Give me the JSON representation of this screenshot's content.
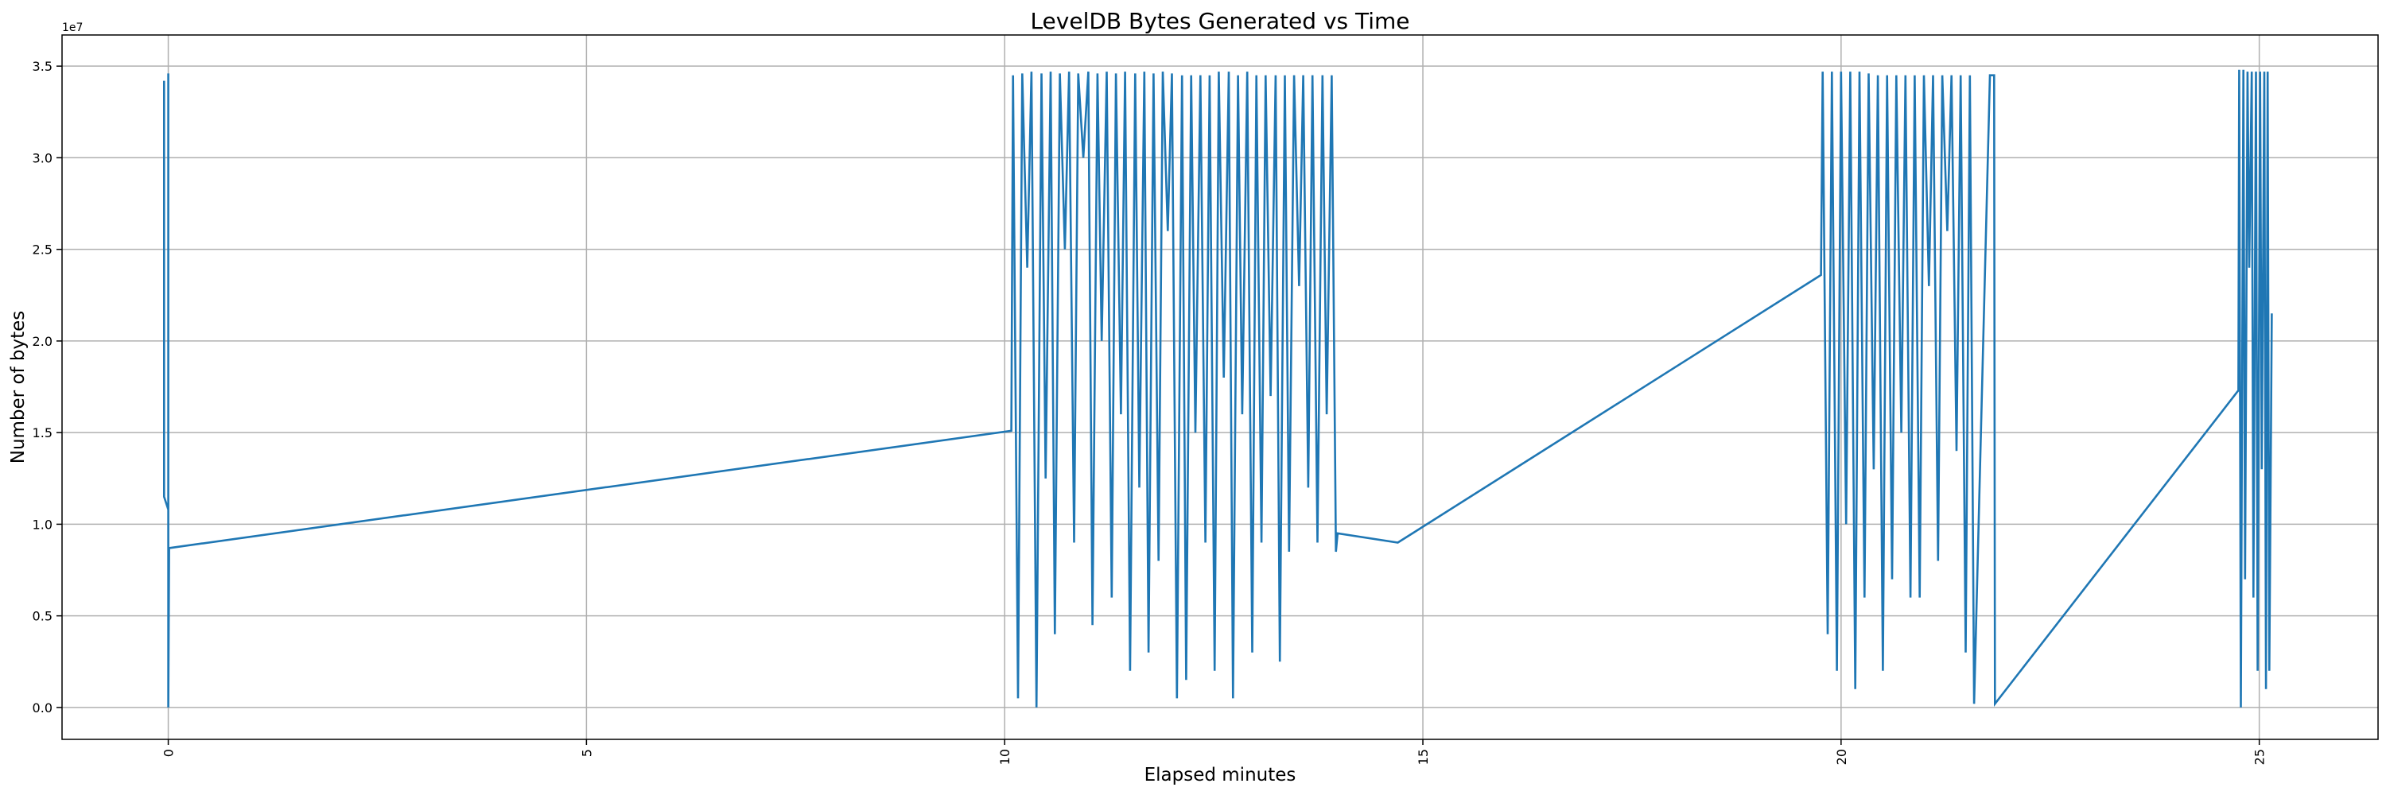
{
  "chart_data": {
    "type": "line",
    "title": "LevelDB Bytes Generated vs Time",
    "xlabel": "Elapsed minutes",
    "ylabel": "Number of bytes",
    "y_offset_label": "1e7",
    "xlim": [
      -1.27,
      26.42
    ],
    "ylim": [
      -0.174,
      3.67
    ],
    "y_units": "1e7 bytes",
    "grid": true,
    "x_ticks": [
      0,
      5,
      10,
      15,
      20,
      25
    ],
    "x_tick_labels": [
      "0",
      "5",
      "10",
      "15",
      "20",
      "25"
    ],
    "y_ticks": [
      0,
      0.5,
      1.0,
      1.5,
      2.0,
      2.5,
      3.0,
      3.5
    ],
    "y_tick_labels": [
      "0.0",
      "0.5",
      "1.0",
      "1.5",
      "2.0",
      "2.5",
      "3.0",
      "3.5"
    ],
    "series": [
      {
        "name": "bytes",
        "color": "#1f77b4",
        "points": [
          [
            -0.05,
            3.42
          ],
          [
            -0.05,
            1.15
          ],
          [
            0,
            1.08
          ],
          [
            0,
            3.46
          ],
          [
            0,
            0.0
          ],
          [
            0.01,
            0.87
          ],
          [
            10.08,
            1.51
          ],
          [
            10.1,
            3.45
          ],
          [
            10.16,
            0.05
          ],
          [
            10.21,
            3.46
          ],
          [
            10.27,
            2.4
          ],
          [
            10.32,
            3.47
          ],
          [
            10.38,
            0.0
          ],
          [
            10.44,
            3.46
          ],
          [
            10.49,
            1.25
          ],
          [
            10.55,
            3.47
          ],
          [
            10.6,
            0.4
          ],
          [
            10.66,
            3.46
          ],
          [
            10.72,
            2.5
          ],
          [
            10.77,
            3.47
          ],
          [
            10.83,
            0.9
          ],
          [
            10.88,
            3.46
          ],
          [
            10.94,
            3.0
          ],
          [
            11.0,
            3.47
          ],
          [
            11.05,
            0.45
          ],
          [
            11.11,
            3.46
          ],
          [
            11.16,
            2.0
          ],
          [
            11.22,
            3.47
          ],
          [
            11.28,
            0.6
          ],
          [
            11.33,
            3.46
          ],
          [
            11.39,
            1.6
          ],
          [
            11.44,
            3.47
          ],
          [
            11.5,
            0.2
          ],
          [
            11.56,
            3.46
          ],
          [
            11.61,
            1.2
          ],
          [
            11.67,
            3.47
          ],
          [
            11.72,
            0.3
          ],
          [
            11.78,
            3.46
          ],
          [
            11.84,
            0.8
          ],
          [
            11.89,
            3.47
          ],
          [
            11.95,
            2.6
          ],
          [
            12.0,
            3.46
          ],
          [
            12.06,
            0.05
          ],
          [
            12.12,
            3.45
          ],
          [
            12.17,
            0.15
          ],
          [
            12.23,
            3.45
          ],
          [
            12.28,
            1.5
          ],
          [
            12.34,
            3.45
          ],
          [
            12.4,
            0.9
          ],
          [
            12.45,
            3.45
          ],
          [
            12.51,
            0.2
          ],
          [
            12.56,
            3.47
          ],
          [
            12.62,
            1.8
          ],
          [
            12.68,
            3.47
          ],
          [
            12.73,
            0.05
          ],
          [
            12.79,
            3.45
          ],
          [
            12.84,
            1.6
          ],
          [
            12.9,
            3.47
          ],
          [
            12.96,
            0.3
          ],
          [
            13.01,
            3.45
          ],
          [
            13.07,
            0.9
          ],
          [
            13.12,
            3.45
          ],
          [
            13.18,
            1.7
          ],
          [
            13.24,
            3.45
          ],
          [
            13.29,
            0.25
          ],
          [
            13.35,
            3.45
          ],
          [
            13.4,
            0.85
          ],
          [
            13.46,
            3.45
          ],
          [
            13.52,
            2.3
          ],
          [
            13.57,
            3.45
          ],
          [
            13.63,
            1.2
          ],
          [
            13.68,
            3.45
          ],
          [
            13.74,
            0.9
          ],
          [
            13.8,
            3.45
          ],
          [
            13.85,
            1.6
          ],
          [
            13.91,
            3.45
          ],
          [
            13.96,
            0.85
          ],
          [
            13.98,
            0.95
          ],
          [
            14.7,
            0.9
          ],
          [
            19.76,
            2.36
          ],
          [
            19.78,
            3.47
          ],
          [
            19.84,
            0.4
          ],
          [
            19.89,
            3.47
          ],
          [
            19.95,
            0.2
          ],
          [
            20.0,
            3.47
          ],
          [
            20.06,
            1.0
          ],
          [
            20.11,
            3.47
          ],
          [
            20.17,
            0.1
          ],
          [
            20.22,
            3.47
          ],
          [
            20.28,
            0.6
          ],
          [
            20.33,
            3.46
          ],
          [
            20.39,
            1.3
          ],
          [
            20.44,
            3.45
          ],
          [
            20.5,
            0.2
          ],
          [
            20.55,
            3.45
          ],
          [
            20.61,
            0.7
          ],
          [
            20.66,
            3.45
          ],
          [
            20.72,
            1.5
          ],
          [
            20.77,
            3.45
          ],
          [
            20.83,
            0.6
          ],
          [
            20.88,
            3.45
          ],
          [
            20.94,
            0.6
          ],
          [
            20.99,
            3.45
          ],
          [
            21.05,
            2.3
          ],
          [
            21.1,
            3.45
          ],
          [
            21.16,
            0.8
          ],
          [
            21.21,
            3.45
          ],
          [
            21.27,
            2.6
          ],
          [
            21.32,
            3.45
          ],
          [
            21.38,
            1.4
          ],
          [
            21.43,
            3.45
          ],
          [
            21.49,
            0.3
          ],
          [
            21.54,
            3.45
          ],
          [
            21.59,
            0.02
          ],
          [
            21.78,
            3.45
          ],
          [
            21.83,
            3.45
          ],
          [
            21.84,
            0.02
          ],
          [
            24.75,
            1.73
          ],
          [
            24.76,
            3.48
          ],
          [
            24.78,
            0.0
          ],
          [
            24.81,
            3.48
          ],
          [
            24.83,
            0.7
          ],
          [
            24.86,
            3.47
          ],
          [
            24.88,
            2.4
          ],
          [
            24.91,
            3.47
          ],
          [
            24.93,
            0.6
          ],
          [
            24.96,
            3.47
          ],
          [
            24.98,
            0.2
          ],
          [
            25.01,
            3.47
          ],
          [
            25.03,
            1.3
          ],
          [
            25.06,
            3.47
          ],
          [
            25.08,
            0.1
          ],
          [
            25.1,
            3.47
          ],
          [
            25.12,
            0.2
          ],
          [
            25.15,
            2.15
          ]
        ]
      }
    ]
  }
}
